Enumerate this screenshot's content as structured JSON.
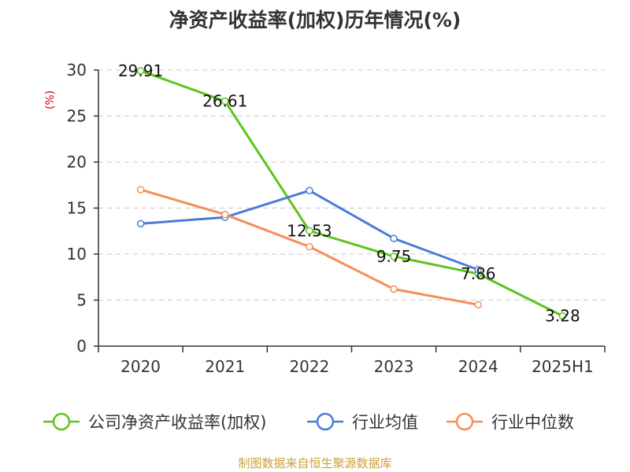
{
  "chart_data": {
    "type": "line",
    "title": "净资产收益率(加权)历年情况(%)",
    "ylabel": "(%)",
    "xlabel": "",
    "categories": [
      "2020",
      "2021",
      "2022",
      "2023",
      "2024",
      "2025H1"
    ],
    "ylim": [
      0,
      30
    ],
    "yticks": [
      0,
      5,
      10,
      15,
      20,
      25,
      30
    ],
    "grid": "horizontal dashed",
    "legend_position": "bottom",
    "series": [
      {
        "name": "公司净资产收益率(加权)",
        "color": "#5dc41e",
        "values": [
          29.91,
          26.61,
          12.53,
          9.75,
          7.86,
          3.28
        ],
        "labels": [
          "29.91",
          "26.61",
          "12.53",
          "9.75",
          "7.86",
          "3.28"
        ]
      },
      {
        "name": "行业均值",
        "color": "#4c7bd8",
        "values": [
          13.3,
          14.0,
          16.9,
          11.7,
          8.3,
          null
        ]
      },
      {
        "name": "行业中位数",
        "color": "#f58e5b",
        "values": [
          17.0,
          14.3,
          10.8,
          6.2,
          4.5,
          null
        ]
      }
    ]
  },
  "source": "制图数据来自恒生聚源数据库"
}
